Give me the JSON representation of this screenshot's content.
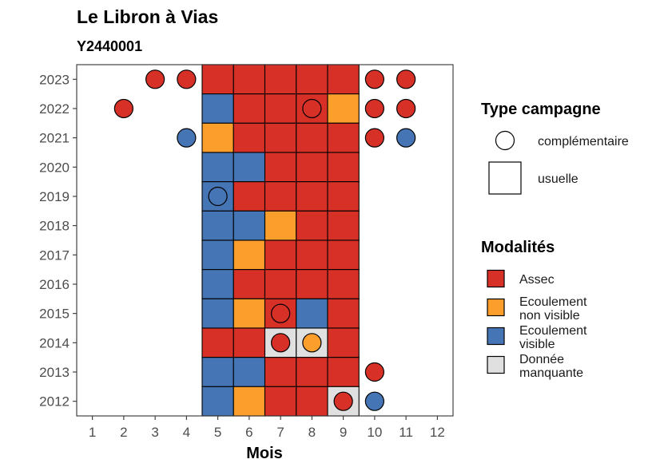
{
  "chart_data": {
    "type": "heatmap",
    "title": "Le Libron à Vias",
    "subtitle": "Y2440001",
    "xlabel": "Mois",
    "ylabel": "",
    "x_ticks": [
      "1",
      "2",
      "3",
      "4",
      "5",
      "6",
      "7",
      "8",
      "9",
      "10",
      "11",
      "12"
    ],
    "years": [
      2012,
      2013,
      2014,
      2015,
      2016,
      2017,
      2018,
      2019,
      2020,
      2021,
      2022,
      2023
    ],
    "xlim": [
      0.5,
      12.5
    ],
    "grid": false,
    "colors": {
      "Assec": "#d73027",
      "Ecoulement non visible": "#fc9e2b",
      "Ecoulement visible": "#4575b4",
      "Donnée manquante": "#e0e0e0"
    },
    "usuelle": [
      {
        "year": 2023,
        "months": [
          "Assec",
          "Assec",
          "Assec",
          "Assec",
          "Assec"
        ]
      },
      {
        "year": 2022,
        "months": [
          "Ecoulement visible",
          "Assec",
          "Assec",
          "Assec",
          "Ecoulement non visible"
        ]
      },
      {
        "year": 2021,
        "months": [
          "Ecoulement non visible",
          "Assec",
          "Assec",
          "Assec",
          "Assec"
        ]
      },
      {
        "year": 2020,
        "months": [
          "Ecoulement visible",
          "Ecoulement visible",
          "Assec",
          "Assec",
          "Assec"
        ]
      },
      {
        "year": 2019,
        "months": [
          "Ecoulement visible",
          "Assec",
          "Assec",
          "Assec",
          "Assec"
        ]
      },
      {
        "year": 2018,
        "months": [
          "Ecoulement visible",
          "Ecoulement visible",
          "Ecoulement non visible",
          "Assec",
          "Assec"
        ]
      },
      {
        "year": 2017,
        "months": [
          "Ecoulement visible",
          "Ecoulement non visible",
          "Assec",
          "Assec",
          "Assec"
        ]
      },
      {
        "year": 2016,
        "months": [
          "Ecoulement visible",
          "Assec",
          "Assec",
          "Assec",
          "Assec"
        ]
      },
      {
        "year": 2015,
        "months": [
          "Ecoulement visible",
          "Ecoulement non visible",
          "Assec",
          "Ecoulement visible",
          "Assec"
        ]
      },
      {
        "year": 2014,
        "months": [
          "Assec",
          "Assec",
          "Donnée manquante",
          "Donnée manquante",
          "Assec"
        ]
      },
      {
        "year": 2013,
        "months": [
          "Ecoulement visible",
          "Ecoulement visible",
          "Assec",
          "Assec",
          "Assec"
        ]
      },
      {
        "year": 2012,
        "months": [
          "Ecoulement visible",
          "Ecoulement non visible",
          "Assec",
          "Assec",
          "Donnée manquante"
        ]
      }
    ],
    "usuelle_first_month": 5,
    "complementaire": [
      {
        "year": 2023,
        "month": 3,
        "value": "Assec"
      },
      {
        "year": 2023,
        "month": 4,
        "value": "Assec"
      },
      {
        "year": 2023,
        "month": 10,
        "value": "Assec"
      },
      {
        "year": 2023,
        "month": 11,
        "value": "Assec"
      },
      {
        "year": 2022,
        "month": 2,
        "value": "Assec"
      },
      {
        "year": 2022,
        "month": 8,
        "value": "Assec"
      },
      {
        "year": 2022,
        "month": 10,
        "value": "Assec"
      },
      {
        "year": 2022,
        "month": 11,
        "value": "Assec"
      },
      {
        "year": 2021,
        "month": 4,
        "value": "Ecoulement visible"
      },
      {
        "year": 2021,
        "month": 10,
        "value": "Assec"
      },
      {
        "year": 2021,
        "month": 11,
        "value": "Ecoulement visible"
      },
      {
        "year": 2019,
        "month": 5,
        "value": "Ecoulement visible"
      },
      {
        "year": 2015,
        "month": 7,
        "value": "Assec"
      },
      {
        "year": 2014,
        "month": 7,
        "value": "Assec"
      },
      {
        "year": 2014,
        "month": 8,
        "value": "Ecoulement non visible"
      },
      {
        "year": 2013,
        "month": 10,
        "value": "Assec"
      },
      {
        "year": 2012,
        "month": 9,
        "value": "Assec"
      },
      {
        "year": 2012,
        "month": 10,
        "value": "Ecoulement visible"
      }
    ],
    "legend_type": {
      "title": "Type campagne",
      "items": [
        {
          "shape": "circle",
          "label": "complémentaire"
        },
        {
          "shape": "square",
          "label": "usuelle"
        }
      ]
    },
    "legend_modalites": {
      "title": "Modalités",
      "items": [
        {
          "key": "Assec",
          "lines": [
            "Assec"
          ]
        },
        {
          "key": "Ecoulement non visible",
          "lines": [
            "Ecoulement",
            "non visible"
          ]
        },
        {
          "key": "Ecoulement visible",
          "lines": [
            "Ecoulement",
            "visible"
          ]
        },
        {
          "key": "Donnée manquante",
          "lines": [
            "Donnée",
            "manquante"
          ]
        }
      ]
    }
  }
}
